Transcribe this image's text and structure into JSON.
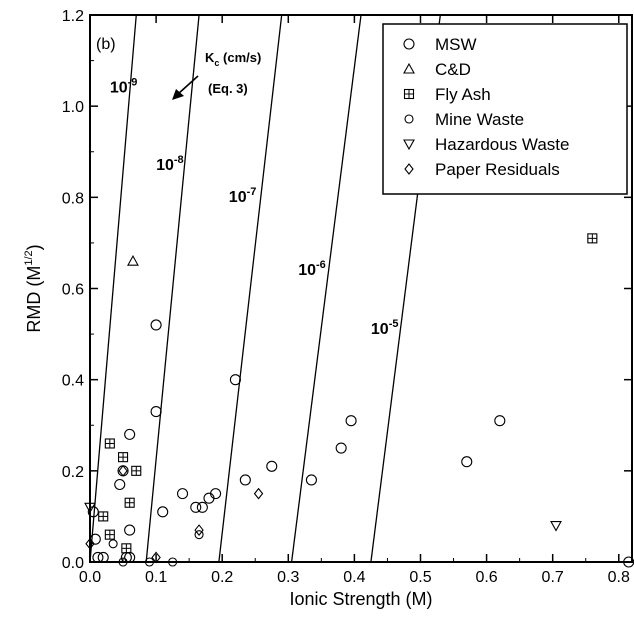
{
  "chart_data": {
    "type": "scatter",
    "panel_label": "(b)",
    "xlabel": "Ionic Strength (M)",
    "ylabel_main": "RMD (M",
    "ylabel_sup": "1/2",
    "ylabel_end": ")",
    "xlim": [
      0.0,
      0.82
    ],
    "ylim": [
      0.0,
      1.2
    ],
    "xticks": [
      {
        "v": 0.0,
        "label": "0.0"
      },
      {
        "v": 0.1,
        "label": "0.1"
      },
      {
        "v": 0.2,
        "label": "0.2"
      },
      {
        "v": 0.3,
        "label": "0.3"
      },
      {
        "v": 0.4,
        "label": "0.4"
      },
      {
        "v": 0.5,
        "label": "0.5"
      },
      {
        "v": 0.6,
        "label": "0.6"
      },
      {
        "v": 0.7,
        "label": "0.7"
      },
      {
        "v": 0.8,
        "label": "0.8"
      }
    ],
    "yticks": [
      {
        "v": 0.0,
        "label": "0.0"
      },
      {
        "v": 0.2,
        "label": "0.2"
      },
      {
        "v": 0.4,
        "label": "0.4"
      },
      {
        "v": 0.6,
        "label": "0.6"
      },
      {
        "v": 0.8,
        "label": "0.8"
      },
      {
        "v": 1.0,
        "label": "1.0"
      },
      {
        "v": 1.2,
        "label": "1.2"
      }
    ],
    "legend_position": "top-right",
    "annotation": {
      "k_main": "K",
      "k_sub": "c",
      "k_units": " (cm/s)",
      "eq": "(Eq. 3)"
    },
    "contours": [
      {
        "base": "10",
        "exp": "-9",
        "x0": 0.0,
        "x1": 0.07,
        "label_x": 0.03,
        "label_y": 1.03
      },
      {
        "base": "10",
        "exp": "-8",
        "x0": 0.085,
        "x1": 0.165,
        "label_x": 0.1,
        "label_y": 0.86
      },
      {
        "base": "10",
        "exp": "-7",
        "x0": 0.195,
        "x1": 0.29,
        "label_x": 0.21,
        "label_y": 0.79
      },
      {
        "base": "10",
        "exp": "-6",
        "x0": 0.305,
        "x1": 0.41,
        "label_x": 0.315,
        "label_y": 0.63
      },
      {
        "base": "10",
        "exp": "-5",
        "x0": 0.425,
        "x1": 0.53,
        "label_x": 0.425,
        "label_y": 0.5
      }
    ],
    "series": [
      {
        "name": "MSW",
        "marker": "circle",
        "points": [
          [
            0.005,
            0.11
          ],
          [
            0.008,
            0.05
          ],
          [
            0.012,
            0.01
          ],
          [
            0.02,
            0.01
          ],
          [
            0.045,
            0.17
          ],
          [
            0.05,
            0.2
          ],
          [
            0.055,
            0.01
          ],
          [
            0.06,
            0.01
          ],
          [
            0.06,
            0.07
          ],
          [
            0.06,
            0.28
          ],
          [
            0.1,
            0.52
          ],
          [
            0.1,
            0.33
          ],
          [
            0.11,
            0.11
          ],
          [
            0.14,
            0.15
          ],
          [
            0.16,
            0.12
          ],
          [
            0.17,
            0.12
          ],
          [
            0.18,
            0.14
          ],
          [
            0.19,
            0.15
          ],
          [
            0.22,
            0.4
          ],
          [
            0.235,
            0.18
          ],
          [
            0.275,
            0.21
          ],
          [
            0.335,
            0.18
          ],
          [
            0.38,
            0.25
          ],
          [
            0.395,
            0.31
          ],
          [
            0.57,
            0.22
          ],
          [
            0.62,
            0.31
          ],
          [
            0.815,
            0.0
          ]
        ]
      },
      {
        "name": "C&D",
        "marker": "triangle-up",
        "points": [
          [
            0.065,
            0.66
          ]
        ]
      },
      {
        "name": "Fly Ash",
        "marker": "square-cross",
        "points": [
          [
            0.02,
            0.1
          ],
          [
            0.03,
            0.06
          ],
          [
            0.03,
            0.26
          ],
          [
            0.05,
            0.23
          ],
          [
            0.06,
            0.13
          ],
          [
            0.07,
            0.2
          ],
          [
            0.055,
            0.03
          ],
          [
            0.76,
            0.71
          ]
        ]
      },
      {
        "name": "Mine Waste",
        "marker": "circle-small",
        "points": [
          [
            0.035,
            0.04
          ],
          [
            0.05,
            0.0
          ],
          [
            0.09,
            0.0
          ],
          [
            0.165,
            0.06
          ],
          [
            0.125,
            0.0
          ]
        ]
      },
      {
        "name": "Hazardous Waste",
        "marker": "triangle-down",
        "points": [
          [
            0.0,
            0.12
          ],
          [
            0.705,
            0.08
          ]
        ]
      },
      {
        "name": "Paper Residuals",
        "marker": "diamond",
        "points": [
          [
            0.0,
            0.04
          ],
          [
            0.05,
            0.2
          ],
          [
            0.1,
            0.01
          ],
          [
            0.165,
            0.07
          ],
          [
            0.255,
            0.15
          ]
        ]
      }
    ]
  }
}
